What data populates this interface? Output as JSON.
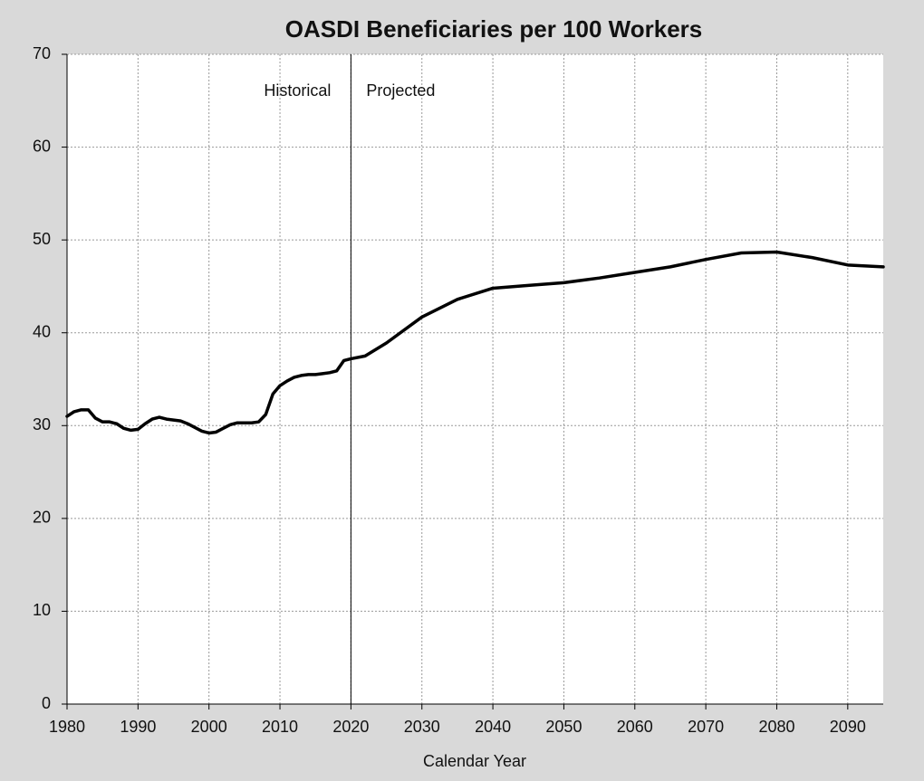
{
  "chart_data": {
    "type": "line",
    "title": "OASDI Beneficiaries per 100 Workers",
    "x_label": "Calendar Year",
    "x": [
      1980,
      1981,
      1982,
      1983,
      1984,
      1985,
      1986,
      1987,
      1988,
      1989,
      1990,
      1991,
      1992,
      1993,
      1994,
      1995,
      1996,
      1997,
      1998,
      1999,
      2000,
      2001,
      2002,
      2003,
      2004,
      2005,
      2006,
      2007,
      2008,
      2009,
      2010,
      2011,
      2012,
      2013,
      2014,
      2015,
      2016,
      2017,
      2018,
      2019,
      2020,
      2022,
      2025,
      2030,
      2035,
      2040,
      2045,
      2050,
      2055,
      2060,
      2065,
      2070,
      2075,
      2080,
      2085,
      2090,
      2095
    ],
    "series": [
      {
        "name": "Beneficiaries per 100 Workers",
        "color": "#000000",
        "values": [
          31.0,
          31.5,
          31.7,
          31.7,
          30.8,
          30.4,
          30.4,
          30.2,
          29.7,
          29.5,
          29.6,
          30.2,
          30.7,
          30.9,
          30.7,
          30.6,
          30.5,
          30.2,
          29.8,
          29.4,
          29.2,
          29.3,
          29.7,
          30.1,
          30.3,
          30.3,
          30.3,
          30.4,
          31.2,
          33.4,
          34.3,
          34.8,
          35.2,
          35.4,
          35.5,
          35.5,
          35.6,
          35.7,
          35.9,
          37.0,
          37.2,
          37.5,
          38.9,
          41.7,
          43.6,
          44.8,
          45.1,
          45.4,
          45.9,
          46.5,
          47.1,
          47.9,
          48.6,
          48.7,
          48.1,
          47.3,
          47.1
        ]
      }
    ],
    "xlim": [
      1980,
      2095
    ],
    "xticks": [
      1980,
      1990,
      2000,
      2010,
      2020,
      2030,
      2040,
      2050,
      2060,
      2070,
      2080,
      2090
    ],
    "ylim": [
      0,
      70
    ],
    "yticks": [
      0,
      10,
      20,
      30,
      40,
      50,
      60,
      70
    ],
    "grid": true,
    "divider_x": 2020,
    "annotations": [
      "Historical",
      "Projected"
    ]
  }
}
